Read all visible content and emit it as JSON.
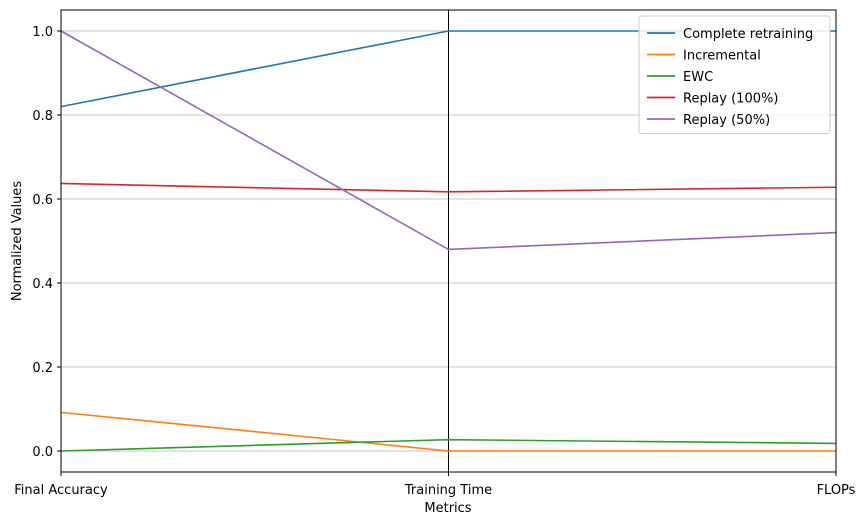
{
  "chart_data": {
    "type": "line",
    "chart_style": "parallel-coordinates",
    "title": "",
    "xlabel": "Metrics",
    "ylabel": "Normalized Values",
    "categories": [
      "Final Accuracy",
      "Training Time",
      "FLOPs"
    ],
    "ylim": [
      -0.05,
      1.05
    ],
    "yticks": [
      0.0,
      0.2,
      0.4,
      0.6,
      0.8,
      1.0
    ],
    "ytick_labels": [
      "0.0",
      "0.2",
      "0.4",
      "0.6",
      "0.8",
      "1.0"
    ],
    "grid": {
      "horizontal": true,
      "vertical_axes": true
    },
    "legend_position": "top-right",
    "series": [
      {
        "name": "Complete retraining",
        "color": "#1f77b4",
        "values": [
          0.82,
          1.0,
          1.0
        ]
      },
      {
        "name": "Incremental",
        "color": "#ff7f0e",
        "values": [
          0.092,
          0.0,
          0.0
        ]
      },
      {
        "name": "EWC",
        "color": "#2ca02c",
        "values": [
          0.0,
          0.027,
          0.018
        ]
      },
      {
        "name": "Replay (100%)",
        "color": "#d62728",
        "values": [
          0.637,
          0.617,
          0.628
        ]
      },
      {
        "name": "Replay (50%)",
        "color": "#9467bd",
        "values": [
          1.0,
          0.48,
          0.52
        ]
      }
    ]
  }
}
